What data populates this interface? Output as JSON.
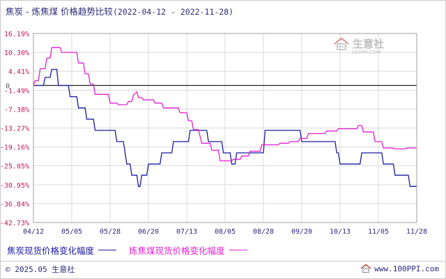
{
  "header": {
    "title": "焦炭 - 炼焦煤 价格趋势比较",
    "date_range": "(2022-04-12 - 2022-11-28)"
  },
  "watermark": {
    "text": "生意社",
    "sub": "100PPI.COM",
    "icon": "house-logo-icon"
  },
  "footer": {
    "copyright": "© 2025.05 生意社",
    "site": "www.100PPI.com",
    "icon": "house-logo-icon"
  },
  "colors": {
    "series_coke": "#1a1aa0",
    "series_coking_coal": "#e020d0",
    "grid": "#d9d9d9",
    "zero_line": "#222222",
    "axis_label": "#c2185b"
  },
  "chart_data": {
    "type": "line",
    "title": "焦炭 - 炼焦煤 价格趋势比较",
    "xlabel": "",
    "ylabel": "",
    "y_ticks": [
      "16.19%",
      "10.30%",
      "4.41%",
      "-1.49%",
      "-7.38%",
      "-13.27%",
      "-19.16%",
      "-25.05%",
      "-30.95%",
      "-36.84%",
      "-42.73%"
    ],
    "y_tick_values": [
      16.19,
      10.3,
      4.41,
      -1.49,
      -7.38,
      -13.27,
      -19.16,
      -25.05,
      -30.95,
      -36.84,
      -42.73
    ],
    "ylim": [
      -42.73,
      16.19
    ],
    "zero_label": "0",
    "x_ticks": [
      "04/12",
      "05/05",
      "05/28",
      "06/20",
      "07/13",
      "08/05",
      "08/28",
      "09/20",
      "10/13",
      "11/05",
      "11/28"
    ],
    "xlim": [
      "2022-04-12",
      "2022-11-28"
    ],
    "grid": true,
    "legend_position": "bottom-left",
    "series": [
      {
        "name": "焦炭现货价格变化幅度",
        "color": "#1a1aa0",
        "points": [
          [
            "2022-04-12",
            0.0
          ],
          [
            "2022-04-13",
            0.0
          ],
          [
            "2022-04-14",
            0.0
          ],
          [
            "2022-04-18",
            0.0
          ],
          [
            "2022-04-19",
            2.5
          ],
          [
            "2022-04-22",
            2.5
          ],
          [
            "2022-04-23",
            5.0
          ],
          [
            "2022-04-26",
            5.0
          ],
          [
            "2022-04-27",
            0.0
          ],
          [
            "2022-05-02",
            0.0
          ],
          [
            "2022-05-03",
            0.0
          ],
          [
            "2022-05-04",
            -3.5
          ],
          [
            "2022-05-08",
            -3.5
          ],
          [
            "2022-05-09",
            -7.0
          ],
          [
            "2022-05-13",
            -7.0
          ],
          [
            "2022-05-14",
            -10.5
          ],
          [
            "2022-05-18",
            -10.5
          ],
          [
            "2022-05-19",
            -14.0
          ],
          [
            "2022-05-31",
            -14.0
          ],
          [
            "2022-06-01",
            -17.5
          ],
          [
            "2022-06-05",
            -17.5
          ],
          [
            "2022-06-07",
            -24.5
          ],
          [
            "2022-06-09",
            -24.5
          ],
          [
            "2022-06-10",
            -28.0
          ],
          [
            "2022-06-13",
            -28.0
          ],
          [
            "2022-06-14",
            -31.5
          ],
          [
            "2022-06-15",
            -31.5
          ],
          [
            "2022-06-16",
            -28.0
          ],
          [
            "2022-06-19",
            -28.0
          ],
          [
            "2022-06-20",
            -24.5
          ],
          [
            "2022-06-27",
            -24.5
          ],
          [
            "2022-06-28",
            -21.0
          ],
          [
            "2022-07-04",
            -21.0
          ],
          [
            "2022-07-05",
            -17.5
          ],
          [
            "2022-07-14",
            -17.5
          ],
          [
            "2022-07-15",
            -14.0
          ],
          [
            "2022-07-25",
            -14.0
          ],
          [
            "2022-07-26",
            -17.5
          ],
          [
            "2022-08-03",
            -17.5
          ],
          [
            "2022-08-04",
            -21.0
          ],
          [
            "2022-08-08",
            -21.0
          ],
          [
            "2022-08-09",
            -24.5
          ],
          [
            "2022-08-11",
            -24.5
          ],
          [
            "2022-08-12",
            -21.0
          ],
          [
            "2022-08-28",
            -21.0
          ],
          [
            "2022-08-29",
            -14.0
          ],
          [
            "2022-09-19",
            -14.0
          ],
          [
            "2022-09-20",
            -17.5
          ],
          [
            "2022-10-10",
            -17.5
          ],
          [
            "2022-10-11",
            -21.0
          ],
          [
            "2022-10-12",
            -21.0
          ],
          [
            "2022-10-13",
            -24.5
          ],
          [
            "2022-10-25",
            -24.5
          ],
          [
            "2022-10-26",
            -21.0
          ],
          [
            "2022-11-07",
            -21.0
          ],
          [
            "2022-11-08",
            -24.5
          ],
          [
            "2022-11-14",
            -24.5
          ],
          [
            "2022-11-15",
            -28.0
          ],
          [
            "2022-11-23",
            -28.0
          ],
          [
            "2022-11-24",
            -31.5
          ],
          [
            "2022-11-28",
            -31.5
          ]
        ]
      },
      {
        "name": "炼焦煤现货价格变化幅度",
        "color": "#e020d0",
        "points": [
          [
            "2022-04-12",
            0.0
          ],
          [
            "2022-04-13",
            1.5
          ],
          [
            "2022-04-15",
            1.5
          ],
          [
            "2022-04-16",
            5.2
          ],
          [
            "2022-04-19",
            5.2
          ],
          [
            "2022-04-20",
            8.5
          ],
          [
            "2022-04-22",
            8.5
          ],
          [
            "2022-04-23",
            11.8
          ],
          [
            "2022-04-28",
            11.8
          ],
          [
            "2022-04-29",
            10.3
          ],
          [
            "2022-05-08",
            10.3
          ],
          [
            "2022-05-09",
            7.0
          ],
          [
            "2022-05-12",
            7.0
          ],
          [
            "2022-05-13",
            3.6
          ],
          [
            "2022-05-15",
            3.6
          ],
          [
            "2022-05-16",
            0.4
          ],
          [
            "2022-05-18",
            0.4
          ],
          [
            "2022-05-19",
            -2.8
          ],
          [
            "2022-05-27",
            -2.8
          ],
          [
            "2022-05-28",
            -5.5
          ],
          [
            "2022-06-01",
            -5.5
          ],
          [
            "2022-06-02",
            -6.0
          ],
          [
            "2022-06-07",
            -6.0
          ],
          [
            "2022-06-08",
            -5.0
          ],
          [
            "2022-06-10",
            -5.0
          ],
          [
            "2022-06-11",
            -3.0
          ],
          [
            "2022-06-13",
            -2.0
          ],
          [
            "2022-06-14",
            -3.8
          ],
          [
            "2022-06-16",
            -3.8
          ],
          [
            "2022-06-17",
            -4.5
          ],
          [
            "2022-06-23",
            -4.5
          ],
          [
            "2022-06-24",
            -5.5
          ],
          [
            "2022-06-28",
            -5.5
          ],
          [
            "2022-06-29",
            -7.0
          ],
          [
            "2022-07-08",
            -7.0
          ],
          [
            "2022-07-09",
            -8.5
          ],
          [
            "2022-07-13",
            -8.5
          ],
          [
            "2022-07-14",
            -11.0
          ],
          [
            "2022-07-16",
            -11.0
          ],
          [
            "2022-07-17",
            -13.8
          ],
          [
            "2022-07-20",
            -13.8
          ],
          [
            "2022-07-22",
            -18.0
          ],
          [
            "2022-07-27",
            -18.0
          ],
          [
            "2022-07-28",
            -20.2
          ],
          [
            "2022-08-01",
            -20.2
          ],
          [
            "2022-08-02",
            -23.5
          ],
          [
            "2022-08-09",
            -23.5
          ],
          [
            "2022-08-10",
            -23.0
          ],
          [
            "2022-08-14",
            -23.0
          ],
          [
            "2022-08-15",
            -22.0
          ],
          [
            "2022-08-19",
            -22.0
          ],
          [
            "2022-08-20",
            -20.5
          ],
          [
            "2022-08-26",
            -20.5
          ],
          [
            "2022-08-27",
            -18.5
          ],
          [
            "2022-09-06",
            -18.5
          ],
          [
            "2022-09-07",
            -18.0
          ],
          [
            "2022-09-12",
            -18.0
          ],
          [
            "2022-09-13",
            -17.5
          ],
          [
            "2022-09-18",
            -17.5
          ],
          [
            "2022-09-19",
            -16.5
          ],
          [
            "2022-09-23",
            -16.5
          ],
          [
            "2022-09-24",
            -15.0
          ],
          [
            "2022-10-04",
            -15.0
          ],
          [
            "2022-10-05",
            -14.2
          ],
          [
            "2022-10-11",
            -14.2
          ],
          [
            "2022-10-12",
            -13.5
          ],
          [
            "2022-10-23",
            -13.5
          ],
          [
            "2022-10-24",
            -12.5
          ],
          [
            "2022-10-26",
            -12.5
          ],
          [
            "2022-10-27",
            -14.5
          ],
          [
            "2022-11-02",
            -14.5
          ],
          [
            "2022-11-03",
            -17.5
          ],
          [
            "2022-11-07",
            -17.5
          ],
          [
            "2022-11-08",
            -19.5
          ],
          [
            "2022-11-14",
            -19.5
          ],
          [
            "2022-11-15",
            -19.8
          ],
          [
            "2022-11-21",
            -19.8
          ],
          [
            "2022-11-22",
            -19.5
          ],
          [
            "2022-11-28",
            -19.5
          ]
        ]
      }
    ]
  }
}
